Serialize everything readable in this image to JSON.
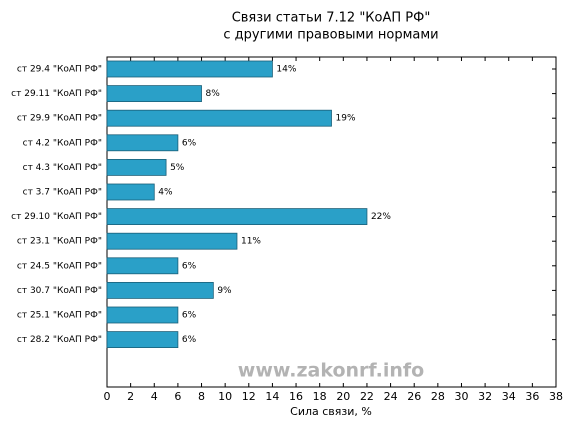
{
  "chart_data": {
    "type": "bar",
    "orientation": "horizontal",
    "title": "Связи статьи 7.12 \"КоАП РФ\"",
    "subtitle": "с другими правовыми нормами",
    "x_label": "Сила связи, %",
    "annotation": "www.zakonrf.info",
    "categories": [
      "ст 29.4 \"КоАП РФ\"",
      "ст 29.11 \"КоАП РФ\"",
      "ст 29.9 \"КоАП РФ\"",
      "ст 4.2 \"КоАП РФ\"",
      "ст 4.3 \"КоАП РФ\"",
      "ст 3.7 \"КоАП РФ\"",
      "ст 29.10 \"КоАП РФ\"",
      "ст 23.1 \"КоАП РФ\"",
      "ст 24.5 \"КоАП РФ\"",
      "ст 30.7 \"КоАП РФ\"",
      "ст 25.1 \"КоАП РФ\"",
      "ст 28.2 \"КоАП РФ\""
    ],
    "values": [
      14,
      8,
      19,
      6,
      5,
      4,
      22,
      11,
      6,
      9,
      6,
      6
    ],
    "value_labels": [
      "14%",
      "8%",
      "19%",
      "6%",
      "5%",
      "4%",
      "22%",
      "11%",
      "6%",
      "9%",
      "6%",
      "6%"
    ],
    "color": "#2aa0c8",
    "xlim": [
      0,
      38
    ],
    "xticks": [
      0,
      2,
      4,
      6,
      8,
      10,
      12,
      14,
      16,
      18,
      20,
      22,
      24,
      26,
      28,
      30,
      32,
      34,
      36,
      38
    ]
  }
}
